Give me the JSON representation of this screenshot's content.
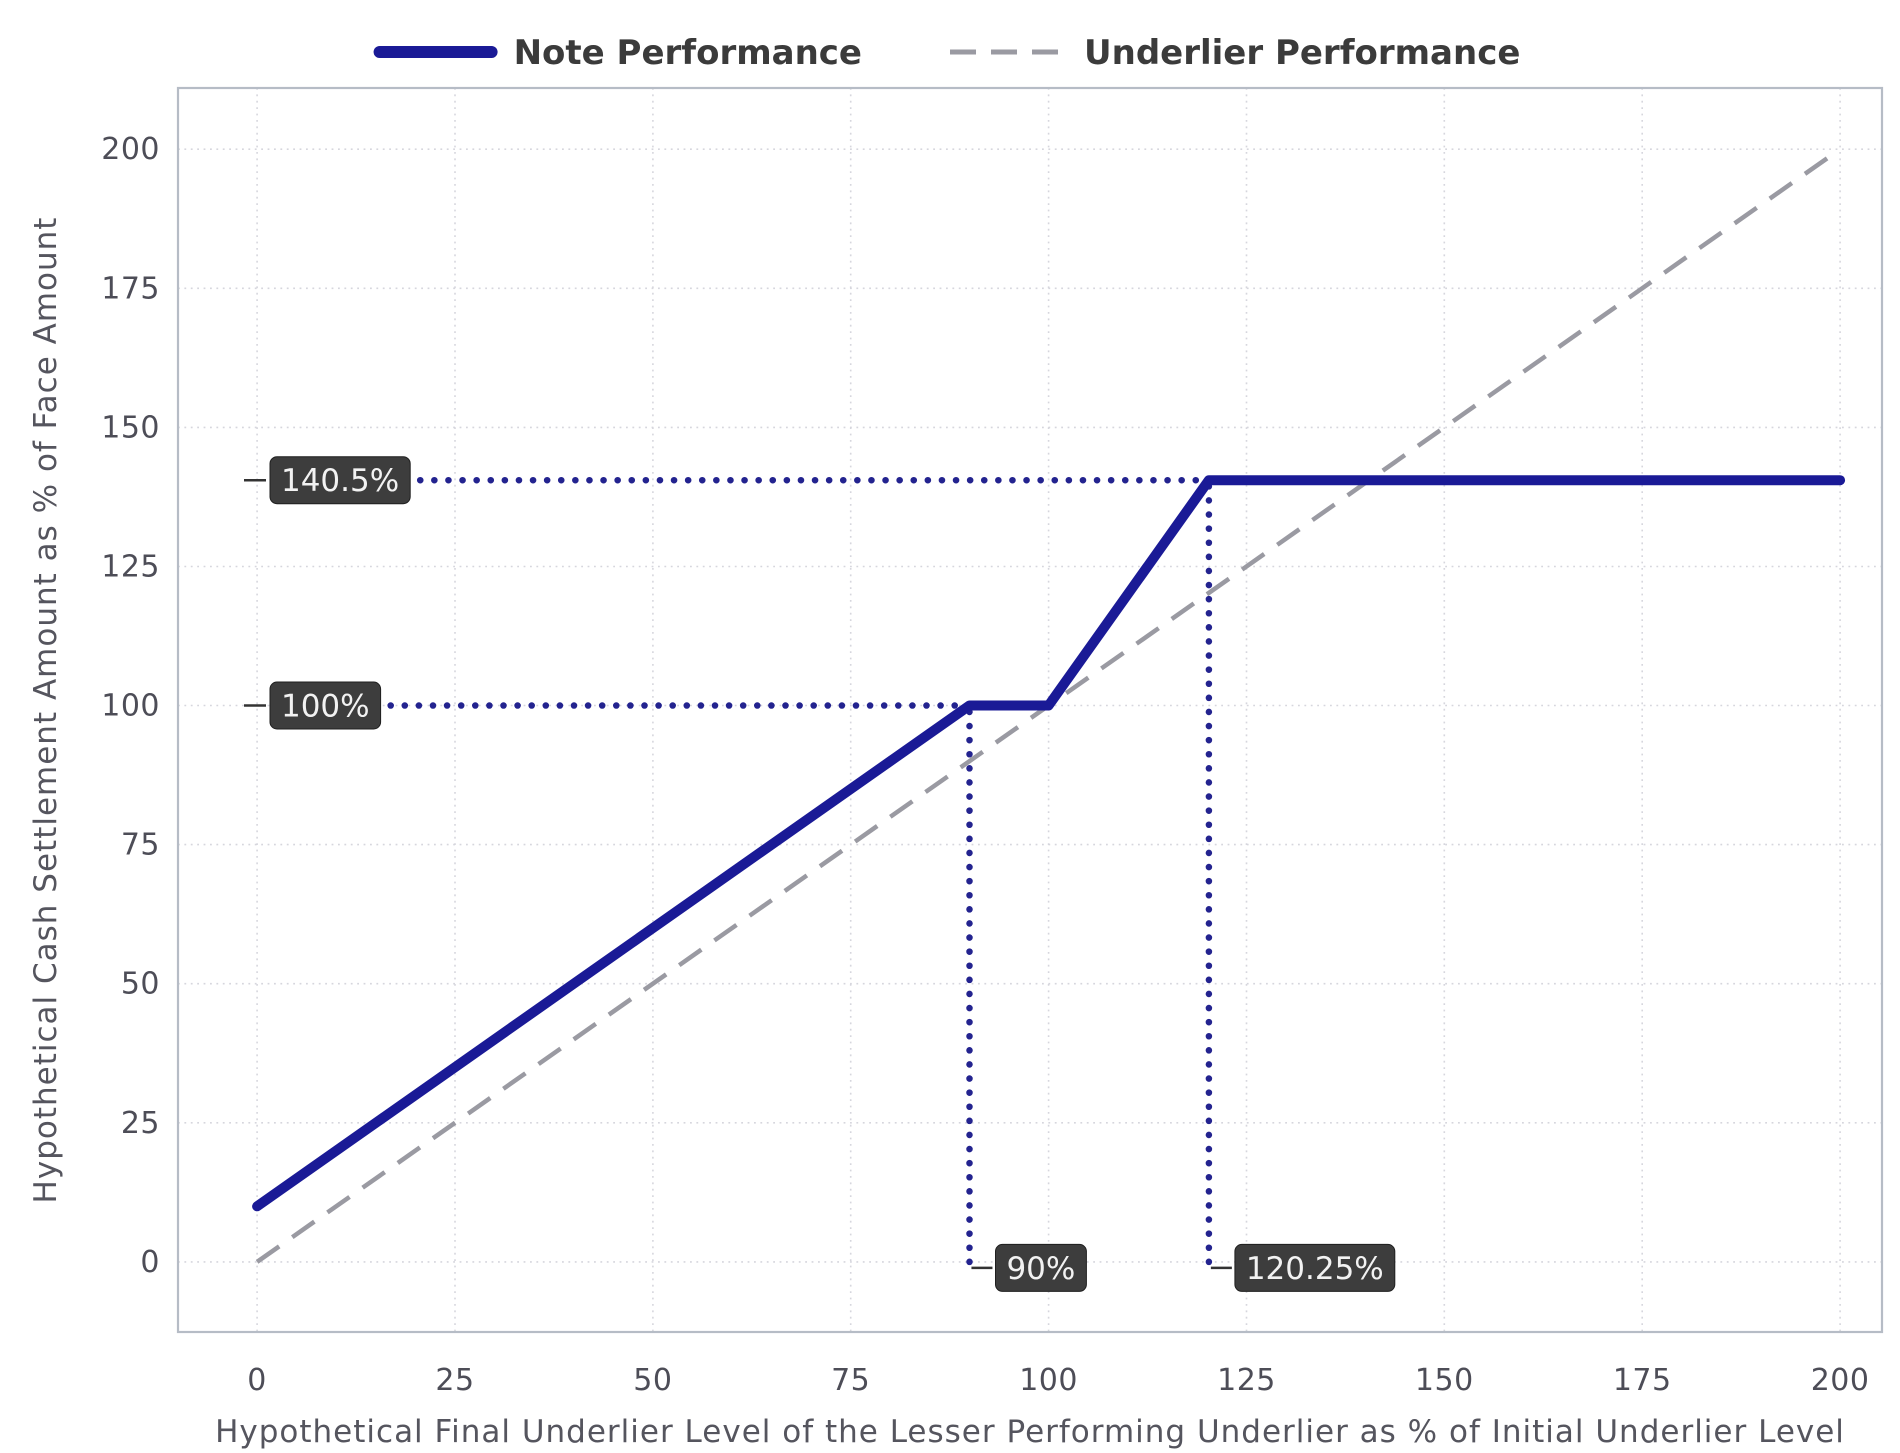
{
  "chart_data": {
    "type": "line",
    "title": "",
    "xlabel": "Hypothetical Final Underlier Level of the Lesser Performing Underlier as % of Initial Underlier Level",
    "ylabel": "Hypothetical Cash Settlement Amount as % of Face Amount",
    "xlim": [
      -10,
      205.3
    ],
    "ylim": [
      -12.6,
      211
    ],
    "xticks": [
      0,
      25,
      50,
      75,
      100,
      125,
      150,
      175,
      200
    ],
    "yticks": [
      0,
      25,
      50,
      75,
      100,
      125,
      150,
      175,
      200
    ],
    "grid": true,
    "legend_position": "top-center",
    "series": [
      {
        "name": "Note Performance",
        "type": "solid",
        "color": "#1a1a96",
        "width": 10,
        "points": [
          [
            0,
            10
          ],
          [
            90,
            100
          ],
          [
            100,
            100
          ],
          [
            120.25,
            140.5
          ],
          [
            200,
            140.5
          ]
        ]
      },
      {
        "name": "Underlier Performance",
        "type": "dashed",
        "color": "#9a9aa2",
        "width": 4.5,
        "points": [
          [
            0,
            0
          ],
          [
            200,
            200
          ]
        ]
      }
    ],
    "annotations": [
      {
        "text": "140.5%",
        "orient": "h",
        "value": 140.5,
        "to": 120.25
      },
      {
        "text": "100%",
        "orient": "h",
        "value": 100,
        "to": 90
      },
      {
        "text": "90%",
        "orient": "v",
        "value": 90,
        "to": 100
      },
      {
        "text": "120.25%",
        "orient": "v",
        "value": 120.25,
        "to": 140.5
      }
    ],
    "colors": {
      "grid": "#d6d6dd",
      "border": "#b6bcc6",
      "tick": "#4d4d57",
      "axis_label": "#55555e",
      "legend_text": "#3b3b3b",
      "annotation_box": "#3d3d3d",
      "annotation_text": "#f2f2f2",
      "annotation_line": "#23238f",
      "leader": "#333333"
    }
  }
}
